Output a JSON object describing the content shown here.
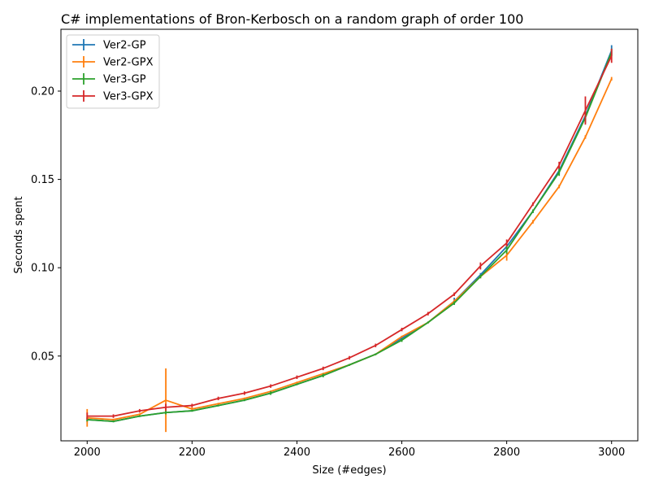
{
  "chart_data": {
    "type": "line",
    "title": "C# implementations of Bron-Kerbosch on a random graph of order 100",
    "xlabel": "Size (#edges)",
    "ylabel": "Seconds spent",
    "xlim": [
      1950,
      3050
    ],
    "ylim": [
      0.002,
      0.235
    ],
    "xticks": [
      2000,
      2200,
      2400,
      2600,
      2800,
      3000
    ],
    "yticks": [
      0.05,
      0.1,
      0.15,
      0.2
    ],
    "ytick_labels": [
      "0.05",
      "0.10",
      "0.15",
      "0.20"
    ],
    "grid": false,
    "legend_position": "top-left",
    "x": [
      2000,
      2050,
      2100,
      2150,
      2200,
      2250,
      2300,
      2350,
      2400,
      2450,
      2500,
      2550,
      2600,
      2650,
      2700,
      2750,
      2800,
      2850,
      2900,
      2950,
      3000
    ],
    "series": [
      {
        "name": "Ver2-GP",
        "color": "#1f77b4",
        "values": [
          0.014,
          0.013,
          0.016,
          0.018,
          0.019,
          0.022,
          0.025,
          0.029,
          0.034,
          0.039,
          0.045,
          0.051,
          0.06,
          0.069,
          0.081,
          0.096,
          0.112,
          0.132,
          0.155,
          0.186,
          0.223
        ],
        "errors": [
          0.0015,
          0.0005,
          0.0005,
          0.0008,
          0.0005,
          0.0005,
          0.0005,
          0.0008,
          0.0005,
          0.0008,
          0.0005,
          0.0005,
          0.0008,
          0.0005,
          0.002,
          0.001,
          0.002,
          0.001,
          0.002,
          0.002,
          0.003
        ]
      },
      {
        "name": "Ver2-GPX",
        "color": "#ff7f0e",
        "values": [
          0.015,
          0.014,
          0.017,
          0.025,
          0.02,
          0.023,
          0.026,
          0.03,
          0.035,
          0.04,
          0.045,
          0.051,
          0.061,
          0.069,
          0.081,
          0.095,
          0.107,
          0.126,
          0.146,
          0.174,
          0.207
        ],
        "errors": [
          0.005,
          0.0005,
          0.0005,
          0.018,
          0.001,
          0.0005,
          0.0005,
          0.0005,
          0.0005,
          0.0005,
          0.0005,
          0.0005,
          0.0005,
          0.0005,
          0.001,
          0.001,
          0.003,
          0.001,
          0.001,
          0.001,
          0.001
        ]
      },
      {
        "name": "Ver3-GP",
        "color": "#2ca02c",
        "values": [
          0.014,
          0.013,
          0.016,
          0.018,
          0.019,
          0.022,
          0.025,
          0.029,
          0.034,
          0.039,
          0.045,
          0.051,
          0.059,
          0.069,
          0.08,
          0.095,
          0.11,
          0.132,
          0.154,
          0.185,
          0.222
        ],
        "errors": [
          0.001,
          0.0005,
          0.0005,
          0.001,
          0.0005,
          0.0005,
          0.0005,
          0.001,
          0.0005,
          0.001,
          0.0005,
          0.0005,
          0.001,
          0.0005,
          0.001,
          0.001,
          0.002,
          0.001,
          0.002,
          0.003,
          0.002
        ]
      },
      {
        "name": "Ver3-GPX",
        "color": "#d62728",
        "values": [
          0.016,
          0.016,
          0.019,
          0.021,
          0.022,
          0.026,
          0.029,
          0.033,
          0.038,
          0.043,
          0.049,
          0.056,
          0.065,
          0.074,
          0.085,
          0.101,
          0.114,
          0.136,
          0.158,
          0.189,
          0.22
        ],
        "errors": [
          0.002,
          0.001,
          0.001,
          0.002,
          0.001,
          0.001,
          0.001,
          0.001,
          0.001,
          0.001,
          0.001,
          0.001,
          0.001,
          0.001,
          0.001,
          0.002,
          0.002,
          0.001,
          0.002,
          0.008,
          0.004
        ]
      }
    ]
  }
}
